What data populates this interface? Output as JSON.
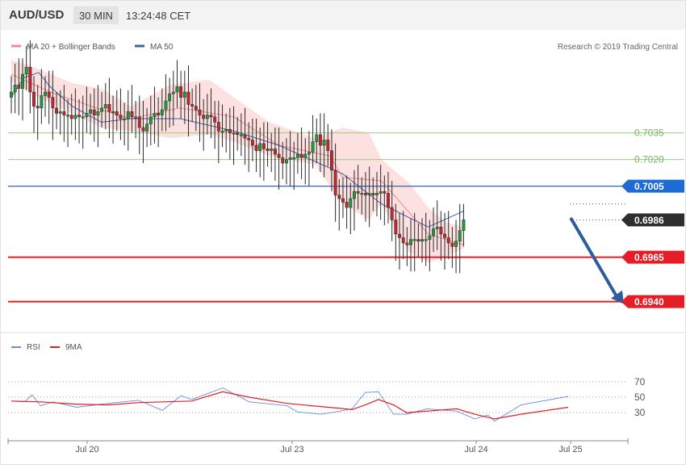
{
  "header": {
    "symbol": "AUD/USD",
    "timeframe": "30 MIN",
    "time": "13:24:48 CET"
  },
  "legend": {
    "ma20_label": "MA 20 + Bollinger Bands",
    "ma50_label": "MA 50",
    "copyright": "Research © 2019 Trading Central"
  },
  "rsi_legend": {
    "rsi_label": "RSI",
    "ma_label": "9MA"
  },
  "colors": {
    "up": "#1f9b3a",
    "down": "#c1272d",
    "ma20": "#f08c8c",
    "ma50": "#3a64a8",
    "band": "#fde0e0",
    "resistance": "#97cf7f",
    "support": "#e41e26",
    "pivot": "#3a64a8",
    "arrow": "#2d5b9c",
    "rsi": "#6a8de0",
    "rsi_ma": "#e41e26"
  },
  "chart_data": [
    {
      "type": "candlestick",
      "title": "AUD/USD 30 MIN",
      "x_ticks": [
        "Jul 20",
        "Jul 23",
        "Jul 24",
        "Jul 25"
      ],
      "y_lim": [
        0.6928,
        0.7088
      ],
      "series": [
        {
          "name": "Price",
          "close_series": [
            0.7058,
            0.7062,
            0.706,
            0.7068,
            0.7072,
            0.7058,
            0.705,
            0.7049,
            0.7056,
            0.7058,
            0.7055,
            0.7049,
            0.7046,
            0.7047,
            0.7045,
            0.7045,
            0.7043,
            0.7045,
            0.7044,
            0.7044,
            0.7046,
            0.7048,
            0.7045,
            0.7047,
            0.7049,
            0.7051,
            0.7047,
            0.7047,
            0.7045,
            0.7043,
            0.7043,
            0.7047,
            0.7044,
            0.7044,
            0.7038,
            0.7036,
            0.704,
            0.7044,
            0.7046,
            0.7045,
            0.7048,
            0.7053,
            0.7057,
            0.7058,
            0.7061,
            0.7055,
            0.7058,
            0.7051,
            0.705,
            0.7048,
            0.7045,
            0.7043,
            0.7045,
            0.7044,
            0.7041,
            0.7036,
            0.7036,
            0.7037,
            0.7035,
            0.7035,
            0.7034,
            0.7034,
            0.7032,
            0.7031,
            0.7028,
            0.7025,
            0.7029,
            0.7026,
            0.7025,
            0.7026,
            0.7023,
            0.7021,
            0.7018,
            0.702,
            0.7021,
            0.7021,
            0.7023,
            0.7021,
            0.7023,
            0.7024,
            0.703,
            0.7034,
            0.7028,
            0.7031,
            0.7025,
            0.7014,
            0.7,
            0.6998,
            0.6996,
            0.6993,
            0.6998,
            0.7002,
            0.7001,
            0.7001,
            0.7,
            0.7001,
            0.7,
            0.7001,
            0.7002,
            0.7001,
            0.6993,
            0.6986,
            0.6978,
            0.6976,
            0.6973,
            0.6972,
            0.6975,
            0.6975,
            0.6974,
            0.6975,
            0.6975,
            0.6977,
            0.6981,
            0.6982,
            0.6978,
            0.6976,
            0.6973,
            0.6971,
            0.6974,
            0.698,
            0.6986
          ]
        },
        {
          "name": "MA 50",
          "type": "line",
          "points": [
            [
              0,
              0.7055
            ],
            [
              14,
              0.7066
            ],
            [
              31,
              0.7069
            ],
            [
              44,
              0.7061
            ],
            [
              69,
              0.705
            ],
            [
              102,
              0.7041
            ],
            [
              135,
              0.7043
            ],
            [
              191,
              0.7043
            ],
            [
              252,
              0.7036
            ],
            [
              303,
              0.7028
            ],
            [
              375,
              0.7012
            ],
            [
              419,
              0.6995
            ],
            [
              472,
              0.6982
            ],
            [
              512,
              0.6991
            ]
          ]
        },
        {
          "name": "MA 20",
          "type": "line",
          "points": [
            [
              0,
              0.7068
            ],
            [
              44,
              0.7058
            ],
            [
              102,
              0.7048
            ],
            [
              135,
              0.7043
            ],
            [
              191,
              0.7049
            ],
            [
              252,
              0.7044
            ],
            [
              303,
              0.7028
            ],
            [
              361,
              0.7022
            ],
            [
              375,
              0.701
            ],
            [
              419,
              0.7008
            ],
            [
              472,
              0.6978
            ],
            [
              512,
              0.6972
            ]
          ]
        },
        {
          "name": "Bollinger Band Upper",
          "type": "area",
          "points": [
            [
              0,
              0.7076
            ],
            [
              14,
              0.7074
            ],
            [
              31,
              0.7071
            ],
            [
              69,
              0.7063
            ],
            [
              102,
              0.706
            ],
            [
              135,
              0.705
            ],
            [
              180,
              0.7062
            ],
            [
              224,
              0.7065
            ],
            [
              252,
              0.7055
            ],
            [
              292,
              0.7041
            ],
            [
              344,
              0.7032
            ],
            [
              375,
              0.7038
            ],
            [
              405,
              0.7035
            ],
            [
              419,
              0.702
            ],
            [
              450,
              0.7007
            ],
            [
              472,
              0.6993
            ],
            [
              491,
              0.6985
            ],
            [
              512,
              0.6982
            ]
          ]
        },
        {
          "name": "Bollinger Band Lower",
          "type": "area",
          "points": [
            [
              0,
              0.7064
            ],
            [
              31,
              0.7055
            ],
            [
              69,
              0.7046
            ],
            [
              102,
              0.7038
            ],
            [
              135,
              0.7036
            ],
            [
              180,
              0.7032
            ],
            [
              224,
              0.7034
            ],
            [
              252,
              0.703
            ],
            [
              292,
              0.7022
            ],
            [
              344,
              0.7017
            ],
            [
              375,
              0.6995
            ],
            [
              405,
              0.6986
            ],
            [
              419,
              0.6995
            ],
            [
              450,
              0.6968
            ],
            [
              472,
              0.6962
            ],
            [
              491,
              0.6965
            ],
            [
              512,
              0.697
            ]
          ]
        }
      ],
      "levels": [
        {
          "name": "resistance-2",
          "value": 0.7035,
          "label": "0.7035"
        },
        {
          "name": "resistance-1",
          "value": 0.702,
          "label": "0.7020"
        },
        {
          "name": "pivot",
          "value": 0.7005,
          "label": "0.7005"
        },
        {
          "name": "last",
          "value": 0.6986,
          "label": "0.6986"
        },
        {
          "name": "support-1",
          "value": 0.6965,
          "label": "0.6965"
        },
        {
          "name": "support-2",
          "value": 0.694,
          "label": "0.6940"
        }
      ],
      "annotations": [
        {
          "type": "arrow",
          "from": 0.6986,
          "to": 0.694,
          "direction": "down"
        }
      ]
    },
    {
      "type": "line",
      "title": "RSI",
      "y_lim": [
        0,
        100
      ],
      "y_ticks": [
        30,
        50,
        70
      ],
      "series": [
        {
          "name": "RSI",
          "points": [
            [
              0,
              45
            ],
            [
              14,
              44
            ],
            [
              22,
              53
            ],
            [
              31,
              39
            ],
            [
              44,
              44
            ],
            [
              69,
              37
            ],
            [
              102,
              42
            ],
            [
              135,
              46
            ],
            [
              160,
              33
            ],
            [
              180,
              52
            ],
            [
              191,
              47
            ],
            [
              224,
              62
            ],
            [
              252,
              44
            ],
            [
              292,
              39
            ],
            [
              303,
              31
            ],
            [
              328,
              28
            ],
            [
              344,
              31
            ],
            [
              361,
              35
            ],
            [
              375,
              56
            ],
            [
              389,
              57
            ],
            [
              405,
              28
            ],
            [
              419,
              28
            ],
            [
              440,
              35
            ],
            [
              472,
              32
            ],
            [
              491,
              22
            ],
            [
              505,
              27
            ],
            [
              512,
              19
            ],
            [
              540,
              40
            ],
            [
              590,
              51
            ]
          ]
        },
        {
          "name": "9MA",
          "points": [
            [
              0,
              45
            ],
            [
              31,
              44
            ],
            [
              69,
              41
            ],
            [
              102,
              40
            ],
            [
              135,
              43
            ],
            [
              191,
              45
            ],
            [
              224,
              57
            ],
            [
              252,
              50
            ],
            [
              292,
              42
            ],
            [
              344,
              36
            ],
            [
              361,
              34
            ],
            [
              375,
              40
            ],
            [
              389,
              47
            ],
            [
              405,
              40
            ],
            [
              419,
              30
            ],
            [
              472,
              35
            ],
            [
              491,
              28
            ],
            [
              512,
              22
            ],
            [
              540,
              28
            ],
            [
              590,
              37
            ]
          ]
        }
      ]
    }
  ]
}
